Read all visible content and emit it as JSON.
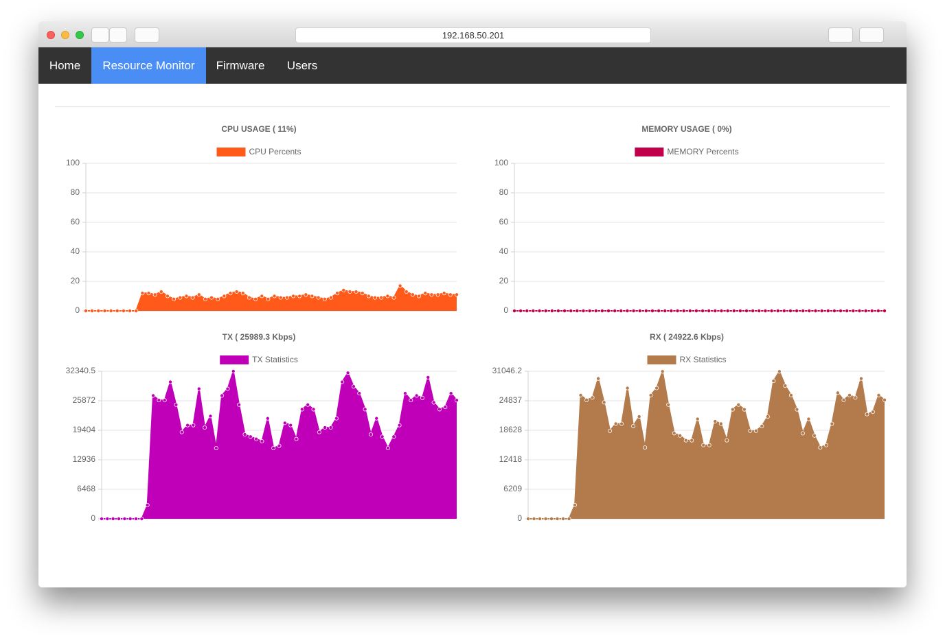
{
  "browser": {
    "url": "192.168.50.201"
  },
  "nav": [
    "Home",
    "Resource Monitor",
    "Firmware",
    "Users"
  ],
  "chart_data": [
    {
      "type": "line",
      "fill": true,
      "title": "CPU USAGE ( 11%)",
      "series": [
        {
          "name": "CPU Percents",
          "color": "#ff5a1a",
          "values": [
            0,
            0,
            0,
            0,
            0,
            0,
            0,
            0,
            0,
            12,
            12,
            11,
            13,
            10,
            8,
            9,
            10,
            9,
            11,
            8,
            9,
            8,
            10,
            12,
            13,
            12,
            9,
            8,
            10,
            8,
            10,
            9,
            9,
            10,
            10,
            11,
            10,
            9,
            8,
            9,
            12,
            14,
            13,
            13,
            12,
            10,
            9,
            9,
            10,
            9,
            17,
            13,
            11,
            10,
            12,
            11,
            11,
            12,
            11,
            11
          ]
        }
      ],
      "ylim": [
        0,
        100
      ],
      "yticks": [
        0,
        20,
        40,
        60,
        80,
        100
      ],
      "grid": true
    },
    {
      "type": "line",
      "fill": true,
      "title": "MEMORY USAGE ( 0%)",
      "series": [
        {
          "name": "MEMORY Percents",
          "color": "#c0004a",
          "values": [
            0,
            0,
            0,
            0,
            0,
            0,
            0,
            0,
            0,
            0,
            0,
            0,
            0,
            0,
            0,
            0,
            0,
            0,
            0,
            0,
            0,
            0,
            0,
            0,
            0,
            0,
            0,
            0,
            0,
            0,
            0,
            0,
            0,
            0,
            0,
            0,
            0,
            0,
            0,
            0,
            0,
            0,
            0,
            0,
            0,
            0,
            0,
            0,
            0,
            0,
            0,
            0,
            0,
            0,
            0,
            0,
            0,
            0,
            0,
            0
          ]
        }
      ],
      "ylim": [
        0,
        100
      ],
      "yticks": [
        0,
        20,
        40,
        60,
        80,
        100
      ],
      "grid": true
    },
    {
      "type": "line",
      "fill": true,
      "title": "TX ( 25989.3 Kbps)",
      "series": [
        {
          "name": "TX Statistics",
          "color": "#c000b8",
          "values": [
            0,
            0,
            0,
            0,
            0,
            0,
            0,
            0,
            3000,
            27000,
            26000,
            26000,
            30000,
            25000,
            19000,
            20500,
            20500,
            28500,
            20000,
            22500,
            15500,
            27000,
            28500,
            32340,
            25000,
            18500,
            18000,
            17500,
            17000,
            22000,
            15500,
            16000,
            21000,
            20500,
            17500,
            24000,
            25000,
            24000,
            19000,
            20000,
            20000,
            22000,
            30000,
            32000,
            29000,
            27500,
            24000,
            18500,
            22000,
            18000,
            15500,
            18000,
            20500,
            27500,
            26000,
            27000,
            26500,
            31000,
            25500,
            24000,
            24500,
            27500,
            26000
          ]
        }
      ],
      "ylim": [
        0,
        32340.5
      ],
      "yticks": [
        0,
        6468,
        12936,
        19404,
        25872,
        32340.5
      ],
      "grid": true
    },
    {
      "type": "line",
      "fill": true,
      "title": "RX ( 24922.6 Kbps)",
      "series": [
        {
          "name": "RX Statistics",
          "color": "#b37a4c",
          "values": [
            0,
            0,
            0,
            0,
            0,
            0,
            0,
            0,
            2900,
            26000,
            25000,
            25500,
            29500,
            24500,
            18500,
            20000,
            20000,
            27500,
            19500,
            21500,
            15000,
            26000,
            27500,
            31000,
            24000,
            18000,
            17500,
            16500,
            16500,
            21000,
            15500,
            15500,
            20500,
            20000,
            16500,
            23000,
            24000,
            23000,
            18500,
            18500,
            19500,
            21500,
            29000,
            31000,
            28000,
            26000,
            23000,
            18000,
            21000,
            17500,
            15000,
            15500,
            20000,
            26500,
            25000,
            26000,
            25500,
            29500,
            22000,
            22500,
            26000,
            25000
          ]
        }
      ],
      "ylim": [
        0,
        31046.2
      ],
      "yticks": [
        0,
        6209,
        12418,
        18628,
        24837,
        31046.2
      ],
      "grid": true
    }
  ]
}
